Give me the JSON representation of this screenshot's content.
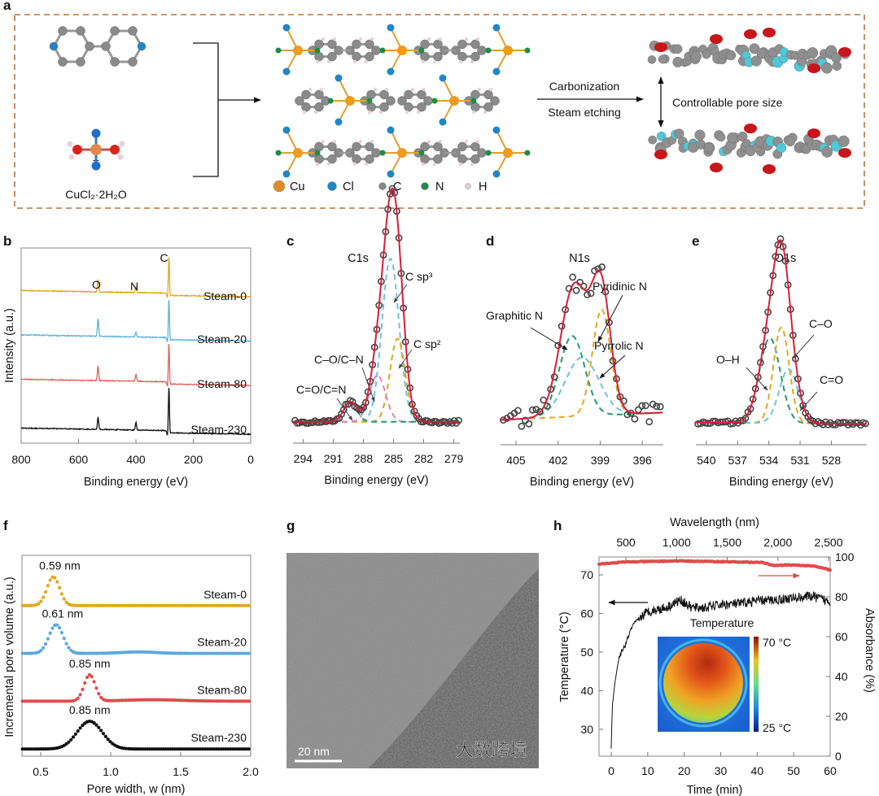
{
  "panel_labels": {
    "a": "a",
    "b": "b",
    "c": "c",
    "d": "d",
    "e": "e",
    "f": "f",
    "g": "g",
    "h": "h"
  },
  "panel_a": {
    "plus": "+",
    "reagent_formula": "CuCl₂·2H₂O",
    "process_top": "Carbonization",
    "process_bottom": "Steam etching",
    "pore_label": "Controllable pore size",
    "legend": [
      {
        "label": "Cu",
        "color": "#e08a2c"
      },
      {
        "label": "Cl",
        "color": "#1f86c8"
      },
      {
        "label": "C",
        "color": "#888888"
      },
      {
        "label": "N",
        "color": "#1f8a4a"
      },
      {
        "label": "H",
        "color": "#e8c8d0"
      }
    ],
    "border_color": "#b8743a"
  },
  "chart_data": [
    {
      "id": "b",
      "type": "line",
      "title": "",
      "xlabel": "Binding energy (eV)",
      "ylabel": "Intensity (a.u.)",
      "xlim": [
        800,
        0
      ],
      "xticks": [
        "800",
        "600",
        "400",
        "200",
        "0"
      ],
      "peak_labels": [
        {
          "label": "O",
          "x": 532
        },
        {
          "label": "N",
          "x": 400
        },
        {
          "label": "C",
          "x": 285
        }
      ],
      "series": [
        {
          "name": "Steam-0",
          "color": "#e0a81c",
          "offset": 3.3,
          "peaks": [
            [
              532,
              0.28
            ],
            [
              400,
              0.13
            ],
            [
              285,
              0.95
            ]
          ]
        },
        {
          "name": "Steam-20",
          "color": "#5bb5dc",
          "offset": 2.3,
          "peaks": [
            [
              532,
              0.4
            ],
            [
              400,
              0.1
            ],
            [
              285,
              0.98
            ]
          ]
        },
        {
          "name": "Steam-80",
          "color": "#e0625a",
          "offset": 1.3,
          "peaks": [
            [
              532,
              0.32
            ],
            [
              400,
              0.16
            ],
            [
              285,
              1.0
            ]
          ]
        },
        {
          "name": "Steam-230",
          "color": "#111111",
          "offset": 0.2,
          "peaks": [
            [
              532,
              0.27
            ],
            [
              400,
              0.17
            ],
            [
              285,
              1.1
            ]
          ]
        }
      ]
    },
    {
      "id": "c",
      "type": "line",
      "title": "C1s",
      "xlabel": "Binding energy (eV)",
      "xlim": [
        295,
        278.4
      ],
      "xticks": [
        "294",
        "291",
        "288",
        "285",
        "282",
        "279"
      ],
      "baseline": 0.04,
      "components": [
        {
          "name": "C sp³",
          "center": 285.3,
          "amp": 0.98,
          "sigma": 0.85,
          "color": "#6fc0e0"
        },
        {
          "name": "C sp²",
          "center": 284.6,
          "amp": 0.5,
          "sigma": 0.75,
          "color": "#e0a81c"
        },
        {
          "name": "C–O/C–N",
          "center": 286.6,
          "amp": 0.28,
          "sigma": 0.8,
          "color": "#d08ac0"
        },
        {
          "name": "C=O/C=N",
          "center": 289.3,
          "amp": 0.12,
          "sigma": 0.65,
          "color": "#1f9a70"
        }
      ]
    },
    {
      "id": "d",
      "type": "line",
      "title": "N1s",
      "xlabel": "Binding energy (eV)",
      "xlim": [
        406.1,
        394.5
      ],
      "xticks": [
        "405",
        "402",
        "399",
        "396"
      ],
      "baseline": 0.12,
      "components": [
        {
          "name": "Graphitic N",
          "center": 401.0,
          "amp": 0.55,
          "sigma": 0.9,
          "color": "#1f9a70"
        },
        {
          "name": "Pyridinic N",
          "center": 398.9,
          "amp": 0.72,
          "sigma": 0.65,
          "color": "#e0a81c"
        },
        {
          "name": "Pyrrolic N",
          "center": 400.3,
          "amp": 0.4,
          "sigma": 1.2,
          "color": "#6fc0e0"
        }
      ]
    },
    {
      "id": "e",
      "type": "line",
      "title": "O1s",
      "xlabel": "Binding energy (eV)",
      "xlim": [
        541,
        524.6
      ],
      "xticks": [
        "540",
        "537",
        "534",
        "531",
        "528"
      ],
      "baseline": 0.04,
      "components": [
        {
          "name": "O–H",
          "center": 533.9,
          "amp": 0.55,
          "sigma": 1.0,
          "color": "#1f9a70"
        },
        {
          "name": "C–O",
          "center": 532.8,
          "amp": 0.62,
          "sigma": 0.75,
          "color": "#e0a81c"
        },
        {
          "name": "C=O",
          "center": 532.1,
          "amp": 0.35,
          "sigma": 0.9,
          "color": "#6fc0e0"
        }
      ]
    },
    {
      "id": "f",
      "type": "scatter",
      "xlabel": "Pore width, w (nm)",
      "ylabel": "Incremental pore volume (a.u.)",
      "xlim": [
        0.35,
        2.0
      ],
      "xticks": [
        "0.5",
        "1.0",
        "1.5",
        "2.0"
      ],
      "series": [
        {
          "name": "Steam-0",
          "color": "#e0a81c",
          "offset": 3.15,
          "peak": 0.59,
          "peak_label": "0.59 nm",
          "amp": 0.6,
          "sigma": 0.045
        },
        {
          "name": "Steam-20",
          "color": "#5aa9dc",
          "offset": 2.15,
          "peak": 0.61,
          "peak_label": "0.61 nm",
          "amp": 0.6,
          "sigma": 0.05
        },
        {
          "name": "Steam-80",
          "color": "#e04b4b",
          "offset": 1.15,
          "peak": 0.85,
          "peak_label": "0.85 nm",
          "amp": 0.55,
          "sigma": 0.04
        },
        {
          "name": "Steam-230",
          "color": "#111111",
          "offset": 0.15,
          "peak": 0.85,
          "peak_label": "0.85 nm",
          "amp": 0.58,
          "sigma": 0.09
        }
      ]
    },
    {
      "id": "h",
      "type": "line",
      "xlabel": "Time (min)",
      "ylabel": "Temperature (°C)",
      "x2label": "Wavelength (nm)",
      "y2label": "Absorbance (%)",
      "xlim": [
        -3.4,
        60
      ],
      "ylim": [
        23,
        75
      ],
      "x2lim": [
        235,
        2516
      ],
      "y2lim": [
        0,
        100
      ],
      "xticks": [
        "0",
        "10",
        "20",
        "30",
        "40",
        "50",
        "60"
      ],
      "yticks": [
        "30",
        "40",
        "50",
        "60",
        "70"
      ],
      "x2ticks": [
        "500",
        "1,000",
        "1,500",
        "2,000",
        "2,500"
      ],
      "y2ticks": [
        "0",
        "20",
        "40",
        "60",
        "80",
        "100"
      ],
      "temperature": [
        [
          0,
          25
        ],
        [
          0.3,
          36
        ],
        [
          1,
          42
        ],
        [
          2,
          48
        ],
        [
          3,
          50.5
        ],
        [
          4,
          52
        ],
        [
          5,
          55
        ],
        [
          6,
          57
        ],
        [
          8,
          59
        ],
        [
          10,
          60.5
        ],
        [
          15,
          61.5
        ],
        [
          19,
          63.5
        ],
        [
          22,
          61.5
        ],
        [
          26,
          61.5
        ],
        [
          30,
          62.3
        ],
        [
          35,
          62.5
        ],
        [
          40,
          63.3
        ],
        [
          45,
          63.5
        ],
        [
          50,
          64
        ],
        [
          55,
          64.5
        ],
        [
          60,
          63
        ]
      ],
      "absorbance": [
        [
          235,
          96.5
        ],
        [
          500,
          97.5
        ],
        [
          1000,
          98
        ],
        [
          1500,
          97.6
        ],
        [
          1850,
          97.2
        ],
        [
          1950,
          95.8
        ],
        [
          2100,
          96
        ],
        [
          2350,
          95.5
        ],
        [
          2516,
          93.5
        ]
      ],
      "temperature_color": "#111111",
      "absorbance_color": "#e04b4b",
      "inset": {
        "title": "Temperature",
        "max_label": "70 °C",
        "min_label": "25 °C"
      }
    }
  ],
  "panel_g": {
    "scale_bar": "20 nm"
  },
  "watermark": "大数跨境"
}
